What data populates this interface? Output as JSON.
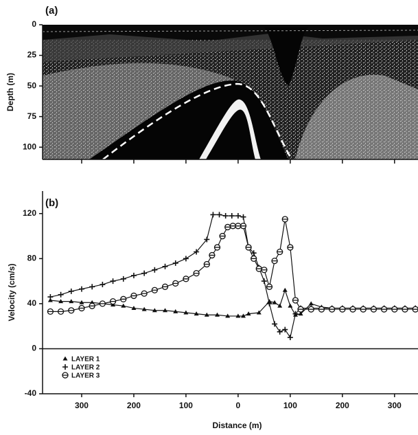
{
  "chart_data": [
    {
      "type": "image",
      "title": "(a)",
      "ylabel": "Depth (m)",
      "ylim": [
        0,
        110
      ],
      "yticks": [
        0,
        25,
        50,
        75,
        100
      ],
      "inverted": true
    },
    {
      "type": "line",
      "title": "(b)",
      "xlabel": "Distance (m)",
      "ylabel": "Velocity (cm/s)",
      "xlim": [
        -375,
        345
      ],
      "ylim": [
        -40,
        140
      ],
      "xticks": [
        {
          "value": -300,
          "label": "300"
        },
        {
          "value": -200,
          "label": "200"
        },
        {
          "value": -100,
          "label": "100"
        },
        0,
        100,
        200,
        300
      ],
      "yticks": [
        -40,
        0,
        40,
        80,
        120
      ],
      "legend": "lower left",
      "series": [
        {
          "name": "LAYER 1",
          "color": "#111111",
          "marker": "triangle",
          "x": [
            -360,
            -340,
            -320,
            -300,
            -280,
            -260,
            -240,
            -220,
            -200,
            -180,
            -160,
            -140,
            -120,
            -100,
            -80,
            -60,
            -40,
            -20,
            0,
            10,
            20,
            40,
            60,
            70,
            80,
            90,
            100,
            110,
            120,
            140,
            160,
            180,
            200,
            220,
            240,
            260,
            280,
            300,
            320,
            340
          ],
          "values": [
            43,
            42,
            42,
            41,
            41,
            40,
            39,
            38,
            36,
            35,
            34,
            34,
            33,
            32,
            31,
            30,
            30,
            29,
            29,
            29,
            31,
            32,
            42,
            41,
            38,
            52,
            38,
            30,
            31,
            40,
            37,
            36,
            36,
            36,
            36,
            36,
            36,
            36,
            36,
            36
          ]
        },
        {
          "name": "LAYER 2",
          "color": "#111111",
          "marker": "plus",
          "x": [
            -360,
            -340,
            -320,
            -300,
            -280,
            -260,
            -240,
            -220,
            -200,
            -180,
            -160,
            -140,
            -120,
            -100,
            -80,
            -60,
            -48,
            -36,
            -24,
            -12,
            0,
            10,
            20,
            30,
            40,
            50,
            60,
            70,
            80,
            90,
            100,
            110,
            120,
            140,
            160,
            180,
            200,
            220,
            240,
            260,
            280,
            300,
            320,
            340
          ],
          "values": [
            46,
            48,
            51,
            53,
            55,
            57,
            60,
            62,
            65,
            67,
            70,
            73,
            76,
            80,
            86,
            97,
            119,
            119,
            118,
            118,
            118,
            117,
            90,
            85,
            72,
            60,
            40,
            22,
            15,
            17,
            10,
            31,
            36,
            36,
            36,
            36,
            36,
            36,
            36,
            36,
            36,
            36,
            36,
            36
          ]
        },
        {
          "name": "LAYER 3",
          "color": "#111111",
          "marker": "circle",
          "x": [
            -360,
            -340,
            -320,
            -300,
            -280,
            -260,
            -240,
            -220,
            -200,
            -180,
            -160,
            -140,
            -120,
            -100,
            -80,
            -60,
            -50,
            -40,
            -30,
            -20,
            -10,
            0,
            10,
            20,
            30,
            40,
            50,
            60,
            70,
            80,
            90,
            100,
            110,
            120,
            140,
            160,
            180,
            200,
            220,
            240,
            260,
            280,
            300,
            320,
            340
          ],
          "values": [
            33,
            33,
            34,
            36,
            38,
            40,
            42,
            44,
            47,
            49,
            52,
            55,
            58,
            62,
            67,
            75,
            83,
            90,
            100,
            108,
            109,
            109,
            109,
            90,
            80,
            71,
            70,
            55,
            78,
            86,
            115,
            90,
            43,
            35,
            35,
            35,
            35,
            35,
            35,
            35,
            35,
            35,
            35,
            35,
            35
          ]
        }
      ]
    }
  ]
}
